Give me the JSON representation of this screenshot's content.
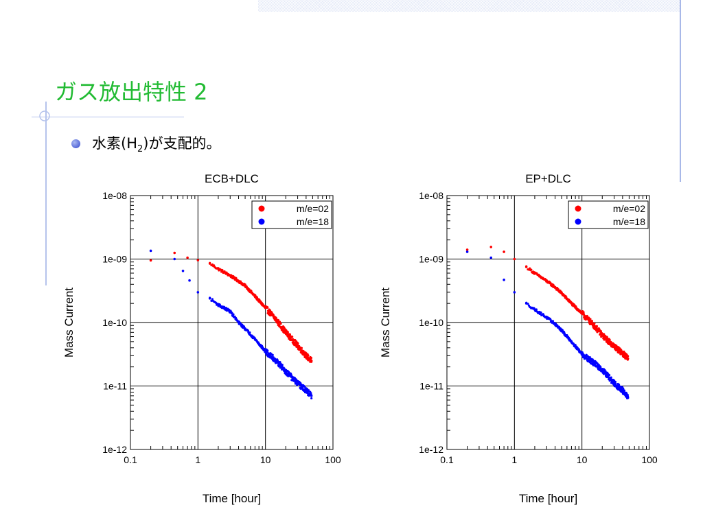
{
  "slide": {
    "title": "ガス放出特性 2",
    "bullet": {
      "text_before": "水素(H",
      "subscript": "2",
      "text_after": ")が支配的。"
    }
  },
  "colors": {
    "title": "#22bb33",
    "series_red": "#ff0000",
    "series_blue": "#0000ff",
    "accent_line": "#b5c3ec"
  },
  "icons": {
    "bullet": "filled-circle-bullet",
    "ornament": "circle-crosshair-ornament"
  },
  "chart_data": [
    {
      "type": "scatter",
      "title": "ECB+DLC",
      "xlabel": "Time [hour]",
      "ylabel": "Mass Current",
      "x_scale": "log",
      "y_scale": "log",
      "xlim": [
        0.1,
        100
      ],
      "ylim": [
        1e-12,
        1e-08
      ],
      "x_ticks": [
        "0.1",
        "1",
        "10",
        "100"
      ],
      "y_ticks": [
        "1e-12",
        "1e-11",
        "1e-10",
        "1e-09",
        "1e-08"
      ],
      "grid": true,
      "legend": "top-right",
      "series": [
        {
          "name": "m/e=02",
          "color": "#ff0000",
          "points": [
            [
              0.2,
              9.5e-10
            ],
            [
              0.45,
              1.25e-09
            ],
            [
              0.7,
              1.05e-09
            ],
            [
              1.0,
              9.6e-10
            ],
            [
              1.5,
              8.5e-10
            ],
            [
              2.0,
              7e-10
            ],
            [
              3.0,
              5.5e-10
            ],
            [
              4.0,
              4.5e-10
            ],
            [
              5.0,
              3.8e-10
            ],
            [
              7.0,
              2.6e-10
            ],
            [
              10.0,
              1.7e-10
            ],
            [
              14.0,
              1.15e-10
            ],
            [
              20.0,
              7e-11
            ],
            [
              30.0,
              4.3e-11
            ],
            [
              40.0,
              3e-11
            ],
            [
              48.0,
              2.5e-11
            ]
          ]
        },
        {
          "name": "m/e=18",
          "color": "#0000ff",
          "points": [
            [
              0.2,
              1.35e-09
            ],
            [
              0.45,
              1e-09
            ],
            [
              0.6,
              6.5e-10
            ],
            [
              0.75,
              4.6e-10
            ],
            [
              1.0,
              3e-10
            ],
            [
              1.5,
              2.4e-10
            ],
            [
              2.0,
              1.9e-10
            ],
            [
              3.0,
              1.5e-10
            ],
            [
              4.0,
              1e-10
            ],
            [
              5.0,
              8e-11
            ],
            [
              7.0,
              5.5e-11
            ],
            [
              10.0,
              3.5e-11
            ],
            [
              15.0,
              2.4e-11
            ],
            [
              20.0,
              1.7e-11
            ],
            [
              30.0,
              1.1e-11
            ],
            [
              40.0,
              8.5e-12
            ],
            [
              48.0,
              7e-12
            ]
          ]
        }
      ]
    },
    {
      "type": "scatter",
      "title": "EP+DLC",
      "xlabel": "Time [hour]",
      "ylabel": "Mass Current",
      "x_scale": "log",
      "y_scale": "log",
      "xlim": [
        0.1,
        100
      ],
      "ylim": [
        1e-12,
        1e-08
      ],
      "x_ticks": [
        "0.1",
        "1",
        "10",
        "100"
      ],
      "y_ticks": [
        "1e-12",
        "1e-11",
        "1e-10",
        "1e-09",
        "1e-08"
      ],
      "grid": true,
      "legend": "top-right",
      "series": [
        {
          "name": "m/e=02",
          "color": "#ff0000",
          "points": [
            [
              0.2,
              1.4e-09
            ],
            [
              0.45,
              1.55e-09
            ],
            [
              0.7,
              1.3e-09
            ],
            [
              1.0,
              1e-09
            ],
            [
              1.5,
              7.5e-10
            ],
            [
              2.0,
              6e-10
            ],
            [
              3.0,
              4.5e-10
            ],
            [
              4.0,
              3.6e-10
            ],
            [
              5.0,
              2.9e-10
            ],
            [
              7.0,
              2e-10
            ],
            [
              10.0,
              1.4e-10
            ],
            [
              15.0,
              9e-11
            ],
            [
              20.0,
              6.3e-11
            ],
            [
              30.0,
              4.2e-11
            ],
            [
              40.0,
              3.3e-11
            ],
            [
              48.0,
              2.7e-11
            ]
          ]
        },
        {
          "name": "m/e=18",
          "color": "#0000ff",
          "points": [
            [
              0.2,
              1.3e-09
            ],
            [
              0.45,
              1.05e-09
            ],
            [
              0.7,
              4.7e-10
            ],
            [
              1.0,
              3e-10
            ],
            [
              1.5,
              2e-10
            ],
            [
              2.0,
              1.6e-10
            ],
            [
              3.0,
              1.2e-10
            ],
            [
              4.0,
              9.5e-11
            ],
            [
              5.0,
              7.5e-11
            ],
            [
              7.0,
              5e-11
            ],
            [
              10.0,
              3.2e-11
            ],
            [
              15.0,
              2.3e-11
            ],
            [
              20.0,
              1.8e-11
            ],
            [
              30.0,
              1.1e-11
            ],
            [
              40.0,
              8.5e-12
            ],
            [
              48.0,
              6.5e-12
            ]
          ]
        }
      ]
    }
  ]
}
